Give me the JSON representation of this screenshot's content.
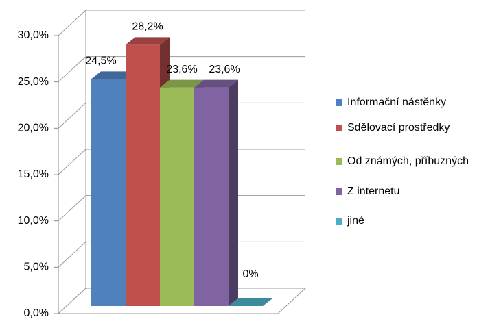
{
  "chart_data": {
    "type": "bar3d",
    "series": [
      {
        "name": "Informační nástěnky",
        "color": "#4f81bd",
        "values": [
          24.5
        ],
        "value_labels": [
          "24,5%"
        ]
      },
      {
        "name": "Sdělovací prostředky",
        "color": "#c0504d",
        "values": [
          28.2
        ],
        "value_labels": [
          "28,2%"
        ]
      },
      {
        "name": "Od známých, příbuzných",
        "color": "#9bbb59",
        "values": [
          23.6
        ],
        "value_labels": [
          "23,6%"
        ]
      },
      {
        "name": "Z internetu",
        "color": "#8064a2",
        "values": [
          23.6
        ],
        "value_labels": [
          "23,6%"
        ]
      },
      {
        "name": "jiné",
        "color": "#4bacc6",
        "values": [
          0
        ],
        "value_labels": [
          "0%"
        ]
      }
    ],
    "ylim": [
      0,
      30
    ],
    "yticks": [
      {
        "value": 0,
        "label": "0,0%"
      },
      {
        "value": 5,
        "label": "5,0%"
      },
      {
        "value": 10,
        "label": "10,0%"
      },
      {
        "value": 15,
        "label": "15,0%"
      },
      {
        "value": 20,
        "label": "20,0%"
      },
      {
        "value": 25,
        "label": "25,0%"
      },
      {
        "value": 30,
        "label": "30,0%"
      }
    ],
    "grid": true,
    "legend": "right"
  }
}
